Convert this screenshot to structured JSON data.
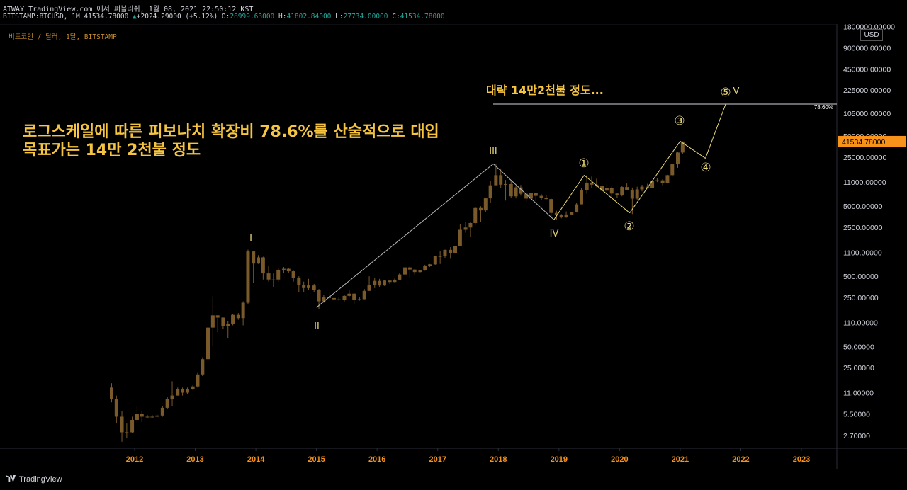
{
  "header": {
    "line1": "ATWAY TradingView.com 에서 퍼블리쉬, 1월 08, 2021 22:50:12 KST",
    "line2_prefix": "BITSTAMP:BTCUSD, 1M 41534.78000",
    "line2_change": "+2024.29000 (+5.12%)",
    "line2_open_label": "O:",
    "line2_open": "28999.63000",
    "line2_high_label": "H:",
    "line2_high": "41802.84000",
    "line2_low_label": "L:",
    "line2_low": "27734.00000",
    "line2_close_label": "C:",
    "line2_close": "41534.78000"
  },
  "symbol_title": "비트코인 / 달러, 1달, BITSTAMP",
  "footer_brand": "TradingView",
  "colors": {
    "candle": "#7a5a2a",
    "accent": "#f5c542",
    "wave": "#e8d87a",
    "price_tag": "#f7931a"
  },
  "chart_data": {
    "type": "line",
    "y_scale": "log",
    "unit": "USD",
    "annotation_main": [
      "로그스케일에 따른 피보나치 확장비 78.6%를 산술적으로 대입",
      "목표가는 14만 2천불 정도"
    ],
    "annotation_target": "대략 14만2천불 정도...",
    "fib_label": "78.60%",
    "fib_level": 142000,
    "last_price": "41534.78000",
    "x_ticks": [
      "2012",
      "2013",
      "2014",
      "2015",
      "2016",
      "2017",
      "2018",
      "2019",
      "2020",
      "2021",
      "2022",
      "2023"
    ],
    "y_ticks": [
      "1800000.00000",
      "900000.00000",
      "450000.00000",
      "225000.00000",
      "105000.00000",
      "50000.00000",
      "25000.00000",
      "11000.00000",
      "5000.00000",
      "2500.00000",
      "1100.00000",
      "500.00000",
      "250.00000",
      "110.00000",
      "50.00000",
      "25.00000",
      "11.00000",
      "5.50000",
      "2.70000"
    ],
    "wave_labels": [
      "I",
      "II",
      "III",
      "IV",
      "V",
      "①",
      "②",
      "③",
      "④",
      "⑤"
    ],
    "wave_path": [
      {
        "x": "2015-01",
        "y": 180
      },
      {
        "x": "2017-12",
        "y": 20000
      },
      {
        "x": "2018-12",
        "y": 3200
      },
      {
        "x": "2019-06",
        "y": 13800
      },
      {
        "x": "2020-03",
        "y": 4000
      },
      {
        "x": "2021-01",
        "y": 42000
      },
      {
        "x": "2021-06",
        "y": 24000
      },
      {
        "x": "2021-10",
        "y": 142000
      }
    ],
    "monthly_ohlc": [
      [
        2011.62,
        13,
        9,
        15,
        8
      ],
      [
        2011.7,
        9,
        5,
        10,
        4
      ],
      [
        2011.79,
        5,
        3,
        6,
        2.2
      ],
      [
        2011.87,
        3,
        3,
        4,
        2.5
      ],
      [
        2011.96,
        3,
        4.5,
        5,
        2.9
      ],
      [
        2012.04,
        4.5,
        5.5,
        7,
        4
      ],
      [
        2012.12,
        5.5,
        5,
        6,
        4.2
      ],
      [
        2012.21,
        5,
        4.9,
        5.3,
        4.7
      ],
      [
        2012.29,
        4.9,
        5,
        5.3,
        4.8
      ],
      [
        2012.37,
        5,
        5.2,
        5.5,
        4.9
      ],
      [
        2012.46,
        5.2,
        6.7,
        7,
        5
      ],
      [
        2012.54,
        6.7,
        9,
        9.5,
        6.5
      ],
      [
        2012.62,
        9,
        10,
        16,
        7
      ],
      [
        2012.71,
        10,
        12.4,
        13,
        10
      ],
      [
        2012.79,
        12.4,
        11,
        13,
        10
      ],
      [
        2012.87,
        11,
        12.5,
        13,
        10.5
      ],
      [
        2012.96,
        12.5,
        13.5,
        14,
        12
      ],
      [
        2013.04,
        13.5,
        20,
        21,
        13
      ],
      [
        2013.12,
        20,
        33,
        35,
        19
      ],
      [
        2013.21,
        33,
        93,
        100,
        32
      ],
      [
        2013.29,
        93,
        139,
        260,
        50
      ],
      [
        2013.37,
        139,
        129,
        140,
        80
      ],
      [
        2013.46,
        129,
        97,
        130,
        90
      ],
      [
        2013.54,
        97,
        106,
        115,
        65
      ],
      [
        2013.62,
        106,
        141,
        145,
        100
      ],
      [
        2013.71,
        141,
        127,
        150,
        120
      ],
      [
        2013.79,
        127,
        210,
        220,
        100
      ],
      [
        2013.87,
        210,
        1130,
        1200,
        200
      ],
      [
        2013.96,
        1130,
        760,
        1150,
        400
      ],
      [
        2014.04,
        760,
        930,
        1000,
        750
      ],
      [
        2014.12,
        930,
        550,
        950,
        450
      ],
      [
        2014.21,
        550,
        450,
        700,
        420
      ],
      [
        2014.29,
        450,
        450,
        550,
        350
      ],
      [
        2014.37,
        450,
        620,
        650,
        420
      ],
      [
        2014.46,
        620,
        640,
        680,
        550
      ],
      [
        2014.54,
        640,
        590,
        650,
        560
      ],
      [
        2014.62,
        590,
        480,
        600,
        420
      ],
      [
        2014.71,
        480,
        380,
        500,
        300
      ],
      [
        2014.79,
        380,
        340,
        420,
        300
      ],
      [
        2014.87,
        340,
        370,
        460,
        320
      ],
      [
        2014.96,
        370,
        320,
        390,
        300
      ],
      [
        2015.04,
        320,
        220,
        330,
        170
      ],
      [
        2015.12,
        220,
        250,
        270,
        210
      ],
      [
        2015.21,
        250,
        245,
        300,
        230
      ],
      [
        2015.29,
        245,
        235,
        260,
        215
      ],
      [
        2015.37,
        235,
        230,
        250,
        225
      ],
      [
        2015.46,
        230,
        263,
        270,
        220
      ],
      [
        2015.54,
        263,
        283,
        315,
        255
      ],
      [
        2015.62,
        283,
        230,
        290,
        200
      ],
      [
        2015.71,
        230,
        236,
        250,
        225
      ],
      [
        2015.79,
        236,
        310,
        330,
        235
      ],
      [
        2015.87,
        310,
        376,
        500,
        310
      ],
      [
        2015.96,
        376,
        430,
        470,
        340
      ],
      [
        2016.04,
        430,
        370,
        460,
        350
      ],
      [
        2016.12,
        370,
        435,
        440,
        365
      ],
      [
        2016.21,
        435,
        415,
        440,
        390
      ],
      [
        2016.29,
        415,
        448,
        465,
        410
      ],
      [
        2016.37,
        448,
        531,
        550,
        440
      ],
      [
        2016.46,
        531,
        670,
        780,
        520
      ],
      [
        2016.54,
        670,
        624,
        700,
        480
      ],
      [
        2016.62,
        624,
        575,
        630,
        530
      ],
      [
        2016.71,
        575,
        608,
        615,
        570
      ],
      [
        2016.79,
        608,
        700,
        730,
        600
      ],
      [
        2016.87,
        700,
        740,
        750,
        680
      ],
      [
        2016.96,
        740,
        963,
        980,
        730
      ],
      [
        2017.04,
        963,
        970,
        1150,
        750
      ],
      [
        2017.12,
        970,
        1190,
        1200,
        920
      ],
      [
        2017.21,
        1190,
        1080,
        1300,
        890
      ],
      [
        2017.29,
        1080,
        1350,
        1360,
        1060
      ],
      [
        2017.37,
        1350,
        2300,
        2800,
        1350
      ],
      [
        2017.46,
        2300,
        2480,
        3000,
        2100
      ],
      [
        2017.54,
        2480,
        2870,
        2930,
        1830
      ],
      [
        2017.62,
        2870,
        4700,
        4800,
        2700
      ],
      [
        2017.71,
        4700,
        4340,
        4980,
        2970
      ],
      [
        2017.79,
        4340,
        6450,
        6500,
        4100
      ],
      [
        2017.87,
        6450,
        9900,
        11400,
        5500
      ],
      [
        2017.96,
        9900,
        13800,
        19700,
        10500
      ],
      [
        2018.04,
        13800,
        10100,
        17200,
        9100
      ],
      [
        2018.12,
        10100,
        10300,
        11800,
        6000
      ],
      [
        2018.21,
        10300,
        6900,
        11700,
        6500
      ],
      [
        2018.29,
        6900,
        9250,
        9800,
        6450
      ],
      [
        2018.37,
        9250,
        7500,
        10000,
        7050
      ],
      [
        2018.46,
        7500,
        6400,
        7800,
        5800
      ],
      [
        2018.54,
        6400,
        7730,
        8500,
        6050
      ],
      [
        2018.62,
        7730,
        7000,
        7800,
        5900
      ],
      [
        2018.71,
        7000,
        6600,
        7400,
        6100
      ],
      [
        2018.79,
        6600,
        6300,
        7200,
        6200
      ],
      [
        2018.87,
        6300,
        4000,
        6500,
        3500
      ],
      [
        2018.96,
        4000,
        3700,
        4300,
        3150
      ],
      [
        2019.04,
        3700,
        3450,
        3850,
        3350
      ],
      [
        2019.12,
        3450,
        3800,
        4200,
        3400
      ],
      [
        2019.21,
        3800,
        4100,
        4100,
        3700
      ],
      [
        2019.29,
        4100,
        5300,
        5500,
        4050
      ],
      [
        2019.37,
        5300,
        8500,
        9000,
        5300
      ],
      [
        2019.46,
        8500,
        10800,
        13800,
        7500
      ],
      [
        2019.54,
        10800,
        10100,
        13200,
        9000
      ],
      [
        2019.62,
        10100,
        9600,
        12300,
        9300
      ],
      [
        2019.71,
        9600,
        8300,
        10900,
        7700
      ],
      [
        2019.79,
        8300,
        9150,
        10500,
        7300
      ],
      [
        2019.87,
        9150,
        7550,
        9500,
        6500
      ],
      [
        2019.96,
        7550,
        7200,
        7750,
        6500
      ],
      [
        2020.04,
        7200,
        9350,
        9600,
        6900
      ],
      [
        2020.12,
        9350,
        8550,
        10500,
        8450
      ],
      [
        2020.21,
        8550,
        6400,
        9200,
        3850
      ],
      [
        2020.29,
        6400,
        8650,
        9450,
        6200
      ],
      [
        2020.37,
        8650,
        9450,
        10050,
        8100
      ],
      [
        2020.46,
        9450,
        9150,
        10400,
        8950
      ],
      [
        2020.54,
        9150,
        11350,
        11450,
        8950
      ],
      [
        2020.62,
        11350,
        11650,
        12500,
        11000
      ],
      [
        2020.71,
        11650,
        10780,
        12100,
        9900
      ],
      [
        2020.79,
        10780,
        13800,
        14000,
        10500
      ],
      [
        2020.87,
        13800,
        19700,
        19900,
        13200
      ],
      [
        2020.96,
        19700,
        29000,
        29300,
        17600
      ],
      [
        2021.04,
        29000,
        41534,
        41802,
        27734
      ]
    ]
  }
}
